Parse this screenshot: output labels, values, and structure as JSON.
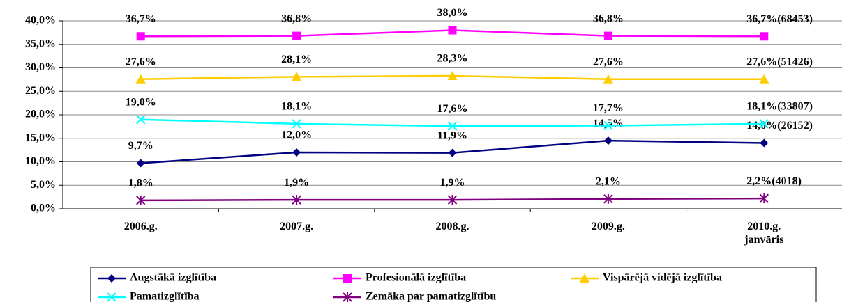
{
  "chart_data": {
    "type": "line",
    "categories": [
      "2006.g.",
      "2007.g.",
      "2008.g.",
      "2009.g.",
      "2010.g. janvāris"
    ],
    "ylim": [
      0,
      40
    ],
    "yticks": [
      {
        "value": 0,
        "label": "0,0%"
      },
      {
        "value": 5,
        "label": "5,0%"
      },
      {
        "value": 10,
        "label": "10,0%"
      },
      {
        "value": 15,
        "label": "15,0%"
      },
      {
        "value": 20,
        "label": "20,0%"
      },
      {
        "value": 25,
        "label": "25,0%"
      },
      {
        "value": 30,
        "label": "30,0%"
      },
      {
        "value": 35,
        "label": "35,0%"
      },
      {
        "value": 40,
        "label": "40,0%"
      }
    ],
    "grid": true,
    "legend": "bottom",
    "series": [
      {
        "name": "Augstākā izglītība",
        "color": "#000080",
        "marker": "diamond",
        "values": [
          9.7,
          12.0,
          11.9,
          14.5,
          14.0
        ],
        "value_labels": [
          "9,7%",
          "12,0%",
          "11,9%",
          "14,5%",
          "14,0%(26152)"
        ]
      },
      {
        "name": "Profesionālā izglītība",
        "color": "#ff00ff",
        "marker": "square",
        "values": [
          36.7,
          36.8,
          38.0,
          36.8,
          36.7
        ],
        "value_labels": [
          "36,7%",
          "36,8%",
          "38,0%",
          "36,8%",
          "36,7%(68453)"
        ]
      },
      {
        "name": "Vispārējā vidējā izglītība",
        "color": "#ffcc00",
        "marker": "triangle",
        "values": [
          27.6,
          28.1,
          28.3,
          27.6,
          27.6
        ],
        "value_labels": [
          "27,6%",
          "28,1%",
          "28,3%",
          "27,6%",
          "27,6%(51426)"
        ]
      },
      {
        "name": "Pamatizglītība",
        "color": "#00ffff",
        "marker": "x",
        "values": [
          19.0,
          18.1,
          17.6,
          17.7,
          18.1
        ],
        "value_labels": [
          "19,0%",
          "18,1%",
          "17,6%",
          "17,7%",
          "18,1%(33807)"
        ]
      },
      {
        "name": "Zemāka par pamatizglītību",
        "color": "#800080",
        "marker": "star",
        "values": [
          1.8,
          1.9,
          1.9,
          2.1,
          2.2
        ],
        "value_labels": [
          "1,8%",
          "1,9%",
          "1,9%",
          "2,1%",
          "2,2%(4018)"
        ]
      }
    ]
  }
}
